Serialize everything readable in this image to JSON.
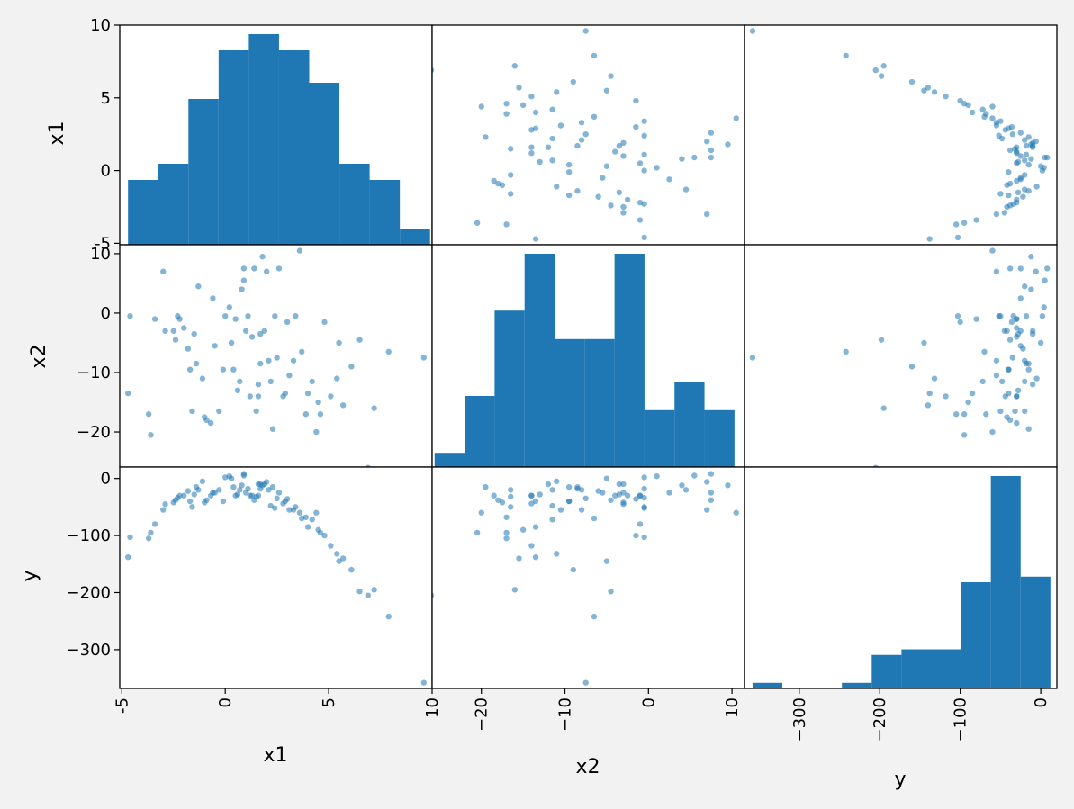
{
  "colors": {
    "figure_background": "#f2f2f2",
    "axes_background": "#ffffff",
    "bar_fill": "#1f77b4",
    "point_fill": "#1f77b4",
    "spine": "#000000"
  },
  "chart_data": {
    "type": "scatter-matrix",
    "variables": [
      "x1",
      "x2",
      "y"
    ],
    "axis_ranges": {
      "x1": [
        -5.1,
        10.0
      ],
      "x2": [
        -25.9,
        11.5
      ],
      "y": [
        -368,
        20
      ]
    },
    "ticks": {
      "x1": {
        "values": [
          -5,
          0,
          5,
          10
        ],
        "labels": [
          "-5",
          "0",
          "5",
          "10"
        ]
      },
      "x2": {
        "values": [
          -20,
          -10,
          0,
          10
        ],
        "labels": [
          "−20",
          "−10",
          "0",
          "10"
        ]
      },
      "y": {
        "values": [
          -300,
          -200,
          -100,
          0
        ],
        "labels": [
          "−300",
          "−200",
          "−100",
          "0"
        ]
      }
    },
    "grid": false,
    "legend": "none",
    "histograms": {
      "x1": {
        "edges": [
          -4.7,
          -3.24,
          -1.78,
          -0.32,
          1.14,
          2.6,
          4.06,
          5.52,
          6.98,
          8.44,
          9.9
        ],
        "counts": [
          4,
          5,
          9,
          12,
          13,
          12,
          10,
          5,
          4,
          1
        ]
      },
      "x2": {
        "edges": [
          -25.6,
          -22.01,
          -18.42,
          -14.83,
          -11.24,
          -7.65,
          -4.06,
          -0.47,
          3.12,
          6.71,
          10.3
        ],
        "counts": [
          1,
          5,
          11,
          15,
          9,
          9,
          15,
          4,
          6,
          4
        ]
      },
      "y": {
        "edges": [
          -358,
          -321,
          -284,
          -247,
          -210,
          -173,
          -136,
          -99,
          -62,
          -25,
          12
        ],
        "counts": [
          1,
          0,
          0,
          1,
          6,
          7,
          7,
          19,
          38,
          20
        ]
      }
    },
    "points": {
      "x1": [
        -4.7,
        -4.6,
        -3.7,
        -3.6,
        -3.4,
        -3.0,
        -2.9,
        -2.5,
        -2.4,
        -2.3,
        -2.2,
        -1.8,
        -1.7,
        -1.6,
        -1.5,
        -1.3,
        -1.1,
        -1.0,
        -0.9,
        -0.7,
        -0.5,
        -0.3,
        0.0,
        0.2,
        0.4,
        0.6,
        0.7,
        0.8,
        0.9,
        1.0,
        1.1,
        1.3,
        1.4,
        1.5,
        1.6,
        1.7,
        1.8,
        1.9,
        2.0,
        2.1,
        2.2,
        2.4,
        2.6,
        2.8,
        3.0,
        3.3,
        3.6,
        3.9,
        4.2,
        4.5,
        4.8,
        5.1,
        5.4,
        5.7,
        6.1,
        6.5,
        6.9,
        7.2,
        7.9,
        9.6,
        -0.6,
        0.3,
        0.9,
        1.2,
        1.6,
        2.3,
        2.9,
        3.4,
        4.0,
        4.6,
        -2.0,
        -1.4,
        -0.1,
        0.5,
        1.7,
        2.5,
        3.1,
        3.7,
        4.4,
        5.5
      ],
      "x2": [
        -13.5,
        -0.5,
        -17,
        -20.5,
        -1,
        7,
        -3,
        -3,
        -4.5,
        -0.5,
        -1,
        -6,
        -9.5,
        -16.5,
        -3.5,
        4.5,
        -11,
        -17.5,
        -18,
        -18.5,
        -5.5,
        -16.5,
        -0.5,
        1,
        -9.5,
        -13,
        -11.5,
        4,
        5.5,
        -3,
        -0.5,
        -4,
        7.5,
        -16.5,
        -14,
        -8.5,
        9.5,
        -3,
        7,
        -8,
        -11.5,
        -0.5,
        7.5,
        -14,
        -1.5,
        -8,
        10.5,
        -17,
        -11.5,
        -15,
        -1.5,
        -14,
        -11,
        -15.5,
        -9,
        -4.5,
        -26,
        -16,
        -6.5,
        -7.5,
        2.5,
        -5,
        7.5,
        -14,
        -12,
        -19.5,
        -13.5,
        -0.5,
        -13.5,
        -17,
        -2.5,
        -8.5,
        -9.5,
        -1,
        -3.5,
        -7.5,
        -10.5,
        -6.5,
        -20,
        -5
      ],
      "y": [
        -138,
        -103,
        -105,
        -95,
        -80,
        -55,
        -45,
        -42,
        -38,
        -34,
        -30,
        -22,
        -40,
        -50,
        -28,
        -20,
        -5,
        -42,
        -38,
        -30,
        -25,
        -20,
        2,
        4,
        -15,
        -28,
        -20,
        -12,
        5,
        -25,
        -18,
        -30,
        -38,
        -32,
        -30,
        -18,
        -12,
        -10,
        -6,
        -20,
        -48,
        -52,
        -25,
        -44,
        -36,
        -55,
        -60,
        -68,
        -72,
        -90,
        -100,
        -118,
        -132,
        -140,
        -160,
        -198,
        -205,
        -195,
        -242,
        -358,
        -25,
        0,
        8,
        -30,
        -10,
        -15,
        -40,
        -50,
        -85,
        -95,
        -30,
        -15,
        -40,
        -30,
        -10,
        -35,
        -55,
        -70,
        -60,
        -145
      ]
    }
  }
}
